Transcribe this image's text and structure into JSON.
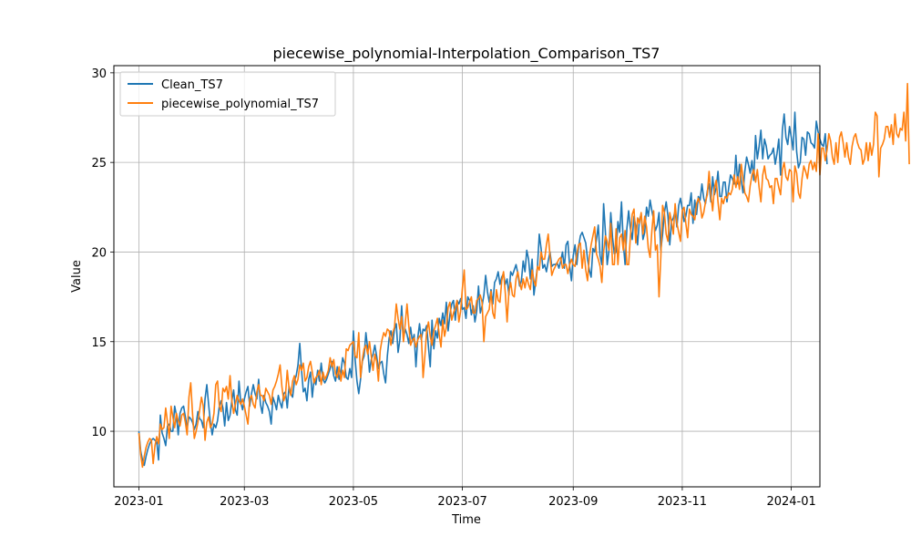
{
  "chart_data": {
    "type": "line",
    "title": "piecewise_polynomial-Interpolation_Comparison_TS7",
    "xlabel": "Time",
    "ylabel": "Value",
    "x_start": "2023-01-01",
    "x_end": "2023-12-31",
    "x_frequency": "daily",
    "xlim": [
      "2022-12-18",
      "2024-01-17"
    ],
    "ylim": [
      6.9,
      30.4
    ],
    "x_ticks": [
      "2023-01",
      "2023-03",
      "2023-05",
      "2023-07",
      "2023-09",
      "2023-11",
      "2024-01"
    ],
    "y_ticks": [
      10,
      15,
      20,
      25,
      30
    ],
    "grid": true,
    "legend_position": "upper-left",
    "series": [
      {
        "name": "Clean_TS7",
        "color": "#1f77b4",
        "values": [
          10.0,
          8.9,
          8.4,
          8.1,
          8.6,
          9.0,
          9.3,
          9.5,
          9.6,
          9.5,
          9.4,
          8.4,
          10.9,
          9.9,
          9.6,
          9.2,
          10.3,
          10.4,
          10.0,
          10.0,
          11.4,
          10.9,
          9.8,
          11.0,
          11.3,
          11.4,
          10.8,
          10.2,
          10.8,
          10.7,
          10.5,
          10.1,
          10.4,
          11.1,
          10.7,
          10.6,
          10.2,
          11.8,
          12.6,
          11.5,
          10.5,
          9.8,
          10.4,
          10.2,
          10.6,
          11.4,
          11.7,
          11.3,
          10.3,
          11.6,
          10.6,
          10.9,
          11.7,
          12.3,
          11.2,
          10.9,
          12.8,
          11.6,
          11.2,
          11.8,
          12.2,
          12.5,
          11.4,
          12.1,
          12.6,
          12.1,
          11.8,
          12.9,
          11.5,
          11.0,
          12.0,
          11.6,
          11.4,
          11.1,
          10.4,
          11.9,
          11.6,
          11.2,
          12.0,
          11.6,
          11.3,
          12.1,
          12.2,
          11.3,
          12.5,
          12.1,
          11.9,
          12.8,
          13.1,
          13.7,
          14.9,
          13.4,
          12.2,
          12.4,
          11.7,
          12.9,
          13.3,
          11.9,
          12.9,
          12.6,
          13.4,
          12.8,
          13.8,
          12.9,
          12.7,
          12.9,
          13.2,
          13.5,
          13.9,
          13.1,
          12.8,
          13.6,
          12.9,
          13.3,
          14.1,
          13.8,
          13.0,
          12.9,
          13.5,
          13.0,
          15.6,
          14.0,
          12.8,
          12.1,
          12.9,
          13.9,
          14.2,
          15.5,
          14.6,
          13.3,
          14.0,
          14.3,
          14.8,
          14.2,
          13.5,
          13.8,
          13.9,
          13.2,
          12.7,
          14.2,
          15.2,
          15.6,
          14.9,
          15.7,
          16.0,
          14.4,
          15.1,
          17.0,
          15.2,
          15.7,
          15.4,
          14.9,
          15.8,
          15.0,
          15.4,
          13.6,
          15.2,
          16.0,
          15.1,
          15.7,
          15.6,
          15.9,
          14.7,
          13.6,
          16.2,
          14.6,
          15.6,
          15.2,
          16.3,
          15.9,
          16.6,
          16.0,
          17.2,
          15.6,
          16.5,
          17.1,
          17.3,
          16.2,
          17.3,
          17.1,
          17.4,
          16.8,
          16.9,
          16.3,
          17.5,
          17.3,
          16.5,
          17.0,
          16.1,
          16.7,
          18.1,
          16.6,
          17.0,
          17.6,
          18.7,
          17.8,
          17.2,
          17.9,
          17.1,
          18.3,
          18.5,
          18.9,
          18.2,
          18.6,
          18.8,
          18.2,
          18.5,
          17.6,
          18.9,
          18.7,
          19.0,
          19.3,
          18.8,
          18.1,
          18.4,
          19.5,
          18.9,
          20.1,
          19.6,
          18.5,
          19.6,
          17.6,
          18.4,
          19.2,
          21.0,
          20.2,
          19.1,
          19.3,
          18.9,
          19.5,
          20.0,
          19.2,
          19.3,
          19.3,
          19.4,
          19.1,
          19.5,
          20.0,
          19.1,
          20.4,
          20.6,
          19.2,
          18.4,
          19.8,
          20.4,
          19.3,
          20.3,
          20.9,
          21.1,
          20.8,
          20.5,
          19.6,
          19.0,
          18.6,
          20.2,
          20.0,
          20.7,
          21.5,
          19.8,
          19.3,
          22.7,
          21.1,
          19.3,
          20.1,
          22.2,
          20.8,
          19.9,
          20.0,
          21.7,
          21.1,
          22.8,
          20.5,
          19.3,
          21.3,
          22.3,
          21.3,
          20.7,
          22.0,
          21.4,
          20.4,
          21.8,
          22.1,
          20.7,
          21.1,
          22.5,
          22.0,
          22.9,
          22.3,
          21.8,
          21.2,
          21.5,
          22.2,
          20.1,
          21.0,
          22.2,
          22.8,
          22.0,
          20.4,
          21.7,
          21.9,
          22.3,
          21.4,
          22.6,
          23.0,
          22.4,
          21.7,
          22.0,
          22.6,
          22.6,
          23.3,
          21.6,
          22.9,
          22.1,
          23.1,
          22.9,
          23.8,
          23.0,
          22.7,
          23.4,
          23.8,
          22.8,
          24.2,
          23.2,
          23.6,
          24.5,
          23.1,
          23.1,
          23.9,
          23.9,
          22.8,
          23.6,
          24.3,
          24.1,
          23.8,
          25.4,
          23.8,
          24.9,
          24.0,
          23.3,
          24.5,
          25.3,
          24.9,
          24.4,
          25.1,
          24.0,
          26.5,
          25.2,
          25.9,
          26.8,
          25.2,
          26.3,
          25.9,
          25.2,
          25.4,
          25.5,
          25.8,
          24.9,
          25.5,
          26.3,
          24.3,
          26.8,
          27.7,
          26.4,
          26.0,
          27.0,
          26.4,
          25.7,
          27.8,
          25.6,
          24.7,
          25.0,
          26.4,
          26.3,
          25.4,
          26.7,
          26.6,
          26.1,
          26.0,
          25.8,
          27.3,
          26.7,
          26.3,
          26.0,
          25.9,
          26.6,
          24.9
        ]
      },
      {
        "name": "piecewise_polynomial_TS7",
        "color": "#ff7f0e",
        "values": [
          9.9,
          8.7,
          8.0,
          8.6,
          9.1,
          9.4,
          9.6,
          9.5,
          8.2,
          9.2,
          9.7,
          9.3,
          10.4,
          10.1,
          10.2,
          11.3,
          10.5,
          9.6,
          11.4,
          10.8,
          10.2,
          11.0,
          10.6,
          10.3,
          10.9,
          11.0,
          10.5,
          9.8,
          11.9,
          12.7,
          11.0,
          9.6,
          10.0,
          10.5,
          11.2,
          11.9,
          11.4,
          9.5,
          10.5,
          10.8,
          10.2,
          10.4,
          11.0,
          12.6,
          12.8,
          11.4,
          11.1,
          12.4,
          12.2,
          12.5,
          11.8,
          13.1,
          11.7,
          11.0,
          11.5,
          12.0,
          11.7,
          11.5,
          11.8,
          11.4,
          10.9,
          10.4,
          11.8,
          12.0,
          11.5,
          11.3,
          12.2,
          12.6,
          12.0,
          12.0,
          11.7,
          12.4,
          12.2,
          12.0,
          11.5,
          12.3,
          12.5,
          12.8,
          13.2,
          13.7,
          12.5,
          11.7,
          12.0,
          13.4,
          12.4,
          12.0,
          12.8,
          13.1,
          12.6,
          12.9,
          13.7,
          13.4,
          13.8,
          12.8,
          13.0,
          13.6,
          13.9,
          13.3,
          12.7,
          13.0,
          13.1,
          13.4,
          12.6,
          13.3,
          12.9,
          13.1,
          13.4,
          14.1,
          13.6,
          14.0,
          13.2,
          13.0,
          13.6,
          12.8,
          13.4,
          13.0,
          14.6,
          14.5,
          14.8,
          14.9,
          15.0,
          14.2,
          14.1,
          15.5,
          13.0,
          14.0,
          14.6,
          14.8,
          14.3,
          15.0,
          14.2,
          13.4,
          14.3,
          13.9,
          12.8,
          14.5,
          15.1,
          15.5,
          15.3,
          15.7,
          15.6,
          14.8,
          15.5,
          15.8,
          17.1,
          16.3,
          15.7,
          16.4,
          15.0,
          16.0,
          17.1,
          15.9,
          14.8,
          15.1,
          15.2,
          14.7,
          15.1,
          15.3,
          15.4,
          13.0,
          14.2,
          15.6,
          16.1,
          15.3,
          14.8,
          15.6,
          15.9,
          16.3,
          15.4,
          14.7,
          16.2,
          15.3,
          15.8,
          16.9,
          17.2,
          16.2,
          16.6,
          16.9,
          17.3,
          16.1,
          16.7,
          18.0,
          19.0,
          16.8,
          16.9,
          17.2,
          17.5,
          16.6,
          16.6,
          17.3,
          17.4,
          17.6,
          17.2,
          15.0,
          16.4,
          16.6,
          16.8,
          17.8,
          16.6,
          16.3,
          17.9,
          17.3,
          17.2,
          18.4,
          18.9,
          17.7,
          16.1,
          17.8,
          18.3,
          17.6,
          17.5,
          18.5,
          18.9,
          18.3,
          17.9,
          18.5,
          18.0,
          18.6,
          18.2,
          17.9,
          19.0,
          18.4,
          18.1,
          19.2,
          19.0,
          20.0,
          19.6,
          19.6,
          20.4,
          21.0,
          19.8,
          18.7,
          19.0,
          19.2,
          19.4,
          19.6,
          19.7,
          19.1,
          19.3,
          19.3,
          18.8,
          19.3,
          19.6,
          19.3,
          19.2,
          19.9,
          20.4,
          20.5,
          19.1,
          20.1,
          19.0,
          18.4,
          19.7,
          20.4,
          20.9,
          21.4,
          19.9,
          19.6,
          19.2,
          18.3,
          20.0,
          20.9,
          20.6,
          20.1,
          21.6,
          19.3,
          19.3,
          21.3,
          19.3,
          20.8,
          21.0,
          20.1,
          21.2,
          19.3,
          19.3,
          20.9,
          22.1,
          22.4,
          20.5,
          21.9,
          21.6,
          22.2,
          21.0,
          22.0,
          21.4,
          20.2,
          19.7,
          21.2,
          22.3,
          20.1,
          20.4,
          17.5,
          19.7,
          22.6,
          22.2,
          21.0,
          20.6,
          22.2,
          21.7,
          21.0,
          22.7,
          21.6,
          21.1,
          20.6,
          22.3,
          22.5,
          21.6,
          20.8,
          22.4,
          22.1,
          22.0,
          21.8,
          22.7,
          23.0,
          22.7,
          21.9,
          22.2,
          22.8,
          23.2,
          24.5,
          23.2,
          22.3,
          23.6,
          24.0,
          22.8,
          21.8,
          23.0,
          22.7,
          23.1,
          23.0,
          23.3,
          23.2,
          23.5,
          24.3,
          23.6,
          24.2,
          23.5,
          24.9,
          24.1,
          23.3,
          23.1,
          22.8,
          23.7,
          24.3,
          24.6,
          23.9,
          24.6,
          23.6,
          22.8,
          24.3,
          24.8,
          24.1,
          24.0,
          23.6,
          23.7,
          22.7,
          24.1,
          24.1,
          23.6,
          23.2,
          24.6,
          25.0,
          24.2,
          24.0,
          24.6,
          24.5,
          22.8,
          24.8,
          24.4,
          23.3,
          23.0,
          24.1,
          24.8,
          24.5,
          24.1,
          24.9,
          25.1,
          24.6,
          25.0,
          24.5,
          26.6,
          24.3,
          25.8,
          25.8,
          25.1,
          25.7,
          26.6,
          26.2,
          25.3,
          24.9,
          26.1,
          25.0,
          26.4,
          26.7,
          26.1,
          25.3,
          26.1,
          25.3,
          24.9,
          25.9,
          26.4,
          26.6,
          26.1,
          25.8,
          25.7,
          24.9,
          25.2,
          26.1,
          25.1,
          26.1,
          25.4,
          26.0,
          27.8,
          27.6,
          24.2,
          25.8,
          26.0,
          26.3,
          27.0,
          27.0,
          26.4,
          27.1,
          26.0,
          27.7,
          26.6,
          26.4,
          26.9,
          26.8,
          27.8,
          26.2,
          29.4,
          24.9
        ]
      }
    ]
  }
}
